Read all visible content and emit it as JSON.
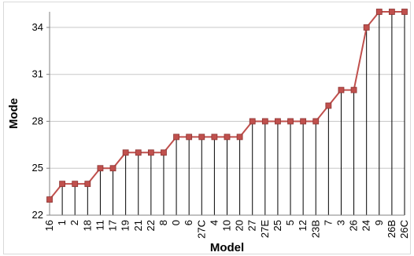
{
  "chart_data": {
    "type": "line",
    "xlabel": "Model",
    "ylabel": "Mode",
    "ylim": [
      22,
      35
    ],
    "yticks": [
      22,
      25,
      28,
      31,
      34
    ],
    "grid": "vertical drop lines to each point, horizontal gridlines",
    "series": [
      {
        "values": [
          23,
          24,
          24,
          24,
          25,
          25,
          26,
          26,
          26,
          26,
          27,
          27,
          27,
          27,
          27,
          27,
          28,
          28,
          28,
          28,
          28,
          28,
          29,
          30,
          30,
          34,
          35,
          35,
          35
        ],
        "color": "#C0504D"
      }
    ],
    "categories": [
      "16",
      "1",
      "2",
      "18",
      "11",
      "17",
      "19",
      "21",
      "22",
      "8",
      "0",
      "6",
      "27C",
      "4",
      "10",
      "20",
      "27",
      "27E",
      "25",
      "5",
      "12",
      "23B",
      "7",
      "3",
      "26",
      "24",
      "9",
      "26B",
      "26C"
    ]
  }
}
